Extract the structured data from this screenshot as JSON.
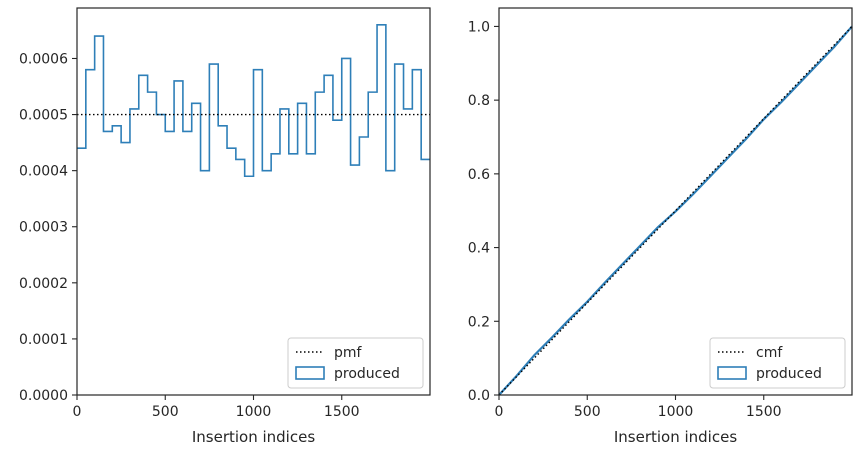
{
  "colors": {
    "hist": "#2e7fb8",
    "ref_line": "#000000",
    "axes": "#262626"
  },
  "chart_data": [
    {
      "type": "histogram",
      "title": "",
      "xlabel": "Insertion indices",
      "ylabel": "",
      "xlim": [
        0,
        2000
      ],
      "ylim": [
        0,
        0.00069
      ],
      "xticks": [
        0,
        500,
        1000,
        1500
      ],
      "xtick_labels": [
        "0",
        "500",
        "1000",
        "1500"
      ],
      "yticks": [
        0,
        0.0001,
        0.0002,
        0.0003,
        0.0004,
        0.0005,
        0.0006
      ],
      "ytick_labels": [
        "0.0000",
        "0.0001",
        "0.0002",
        "0.0003",
        "0.0004",
        "0.0005",
        "0.0006"
      ],
      "grid": false,
      "legend_position": "lower-right",
      "bin_width": 50,
      "bins_start": 0,
      "values": [
        0.00044,
        0.00058,
        0.00064,
        0.00047,
        0.00048,
        0.00045,
        0.00051,
        0.00057,
        0.00054,
        0.0005,
        0.00047,
        0.00056,
        0.00047,
        0.00052,
        0.0004,
        0.00059,
        0.00048,
        0.00044,
        0.00042,
        0.00039,
        0.00058,
        0.0004,
        0.00043,
        0.00051,
        0.00043,
        0.00052,
        0.00043,
        0.00054,
        0.00057,
        0.00049,
        0.0006,
        0.00041,
        0.00046,
        0.00054,
        0.00066,
        0.0004,
        0.00059,
        0.00051,
        0.00058,
        0.00042
      ],
      "reference": {
        "name": "pmf",
        "value": 0.0005
      },
      "series_name": "produced"
    },
    {
      "type": "line",
      "title": "",
      "xlabel": "Insertion indices",
      "ylabel": "",
      "xlim": [
        0,
        2000
      ],
      "ylim": [
        0,
        1.05
      ],
      "xticks": [
        0,
        500,
        1000,
        1500
      ],
      "xtick_labels": [
        "0",
        "500",
        "1000",
        "1500"
      ],
      "yticks": [
        0,
        0.2,
        0.4,
        0.6,
        0.8,
        1.0
      ],
      "ytick_labels": [
        "0.0",
        "0.2",
        "0.4",
        "0.6",
        "0.8",
        "1.0"
      ],
      "grid": false,
      "legend_position": "lower-right",
      "series": [
        {
          "name": "cmf",
          "x": [
            0,
            2000
          ],
          "y": [
            0,
            1.0
          ]
        },
        {
          "name": "produced",
          "x": [
            0,
            100,
            200,
            300,
            400,
            500,
            600,
            700,
            800,
            900,
            1000,
            1100,
            1200,
            1300,
            1400,
            1500,
            1600,
            1700,
            1800,
            1900,
            2000
          ],
          "y": [
            0,
            0.052,
            0.108,
            0.156,
            0.206,
            0.253,
            0.305,
            0.355,
            0.405,
            0.455,
            0.498,
            0.545,
            0.595,
            0.645,
            0.695,
            0.748,
            0.795,
            0.845,
            0.895,
            0.945,
            1.0
          ]
        }
      ]
    }
  ]
}
